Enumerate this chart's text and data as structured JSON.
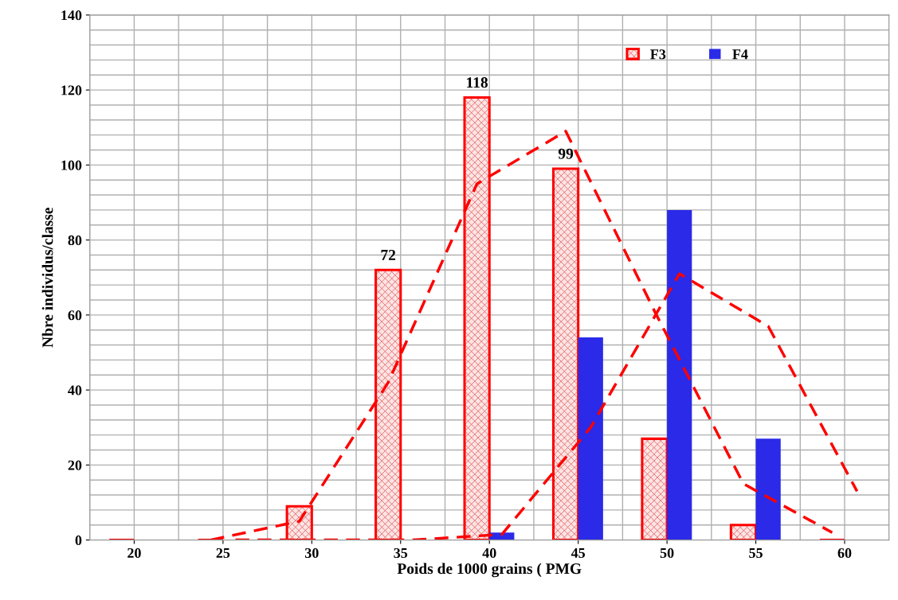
{
  "chart_data": {
    "type": "bar",
    "xlabel": "Poids de 1000 grains ( PMG",
    "ylabel": "Nbre individus/classe",
    "xlim": [
      17.5,
      62.5
    ],
    "xticks": [
      20,
      25,
      30,
      35,
      40,
      45,
      50,
      55,
      60
    ],
    "ylim": [
      0,
      140
    ],
    "yticks": [
      0,
      20,
      40,
      60,
      80,
      100,
      120,
      140
    ],
    "grid": true,
    "legend": "top right",
    "series": [
      {
        "name": "F3",
        "color": "#ff0000",
        "x": [
          19.3,
          24.3,
          29.3,
          34.3,
          39.3,
          44.3,
          49.3,
          54.3,
          59.3
        ],
        "values": [
          0,
          0,
          9,
          72,
          118,
          99,
          27,
          4,
          0
        ],
        "value_labels": [
          null,
          null,
          null,
          "72",
          "118",
          "99",
          null,
          null,
          null
        ]
      },
      {
        "name": "F4",
        "color": "#2a2ae8",
        "x": [
          20.7,
          25.7,
          30.7,
          35.7,
          40.7,
          45.7,
          50.7,
          55.7,
          60.7
        ],
        "values": [
          0,
          0,
          0,
          0,
          2,
          54,
          88,
          27,
          0
        ]
      },
      {
        "type": "line",
        "color": "#ff0000",
        "line_style": "dashed",
        "x": [
          24.3,
          29.3,
          34.3,
          39.3,
          44.3,
          49.3,
          54.3,
          59.3
        ],
        "values": [
          0,
          5,
          42,
          95,
          109,
          61,
          15,
          2
        ]
      },
      {
        "type": "line",
        "color": "#ff0000",
        "line_style": "dashed",
        "x": [
          25.7,
          30.7,
          35.7,
          40.7,
          45.7,
          50.7,
          55.7,
          60.7
        ],
        "values": [
          0,
          0,
          0,
          1.5,
          30,
          71,
          57,
          13
        ]
      }
    ]
  }
}
